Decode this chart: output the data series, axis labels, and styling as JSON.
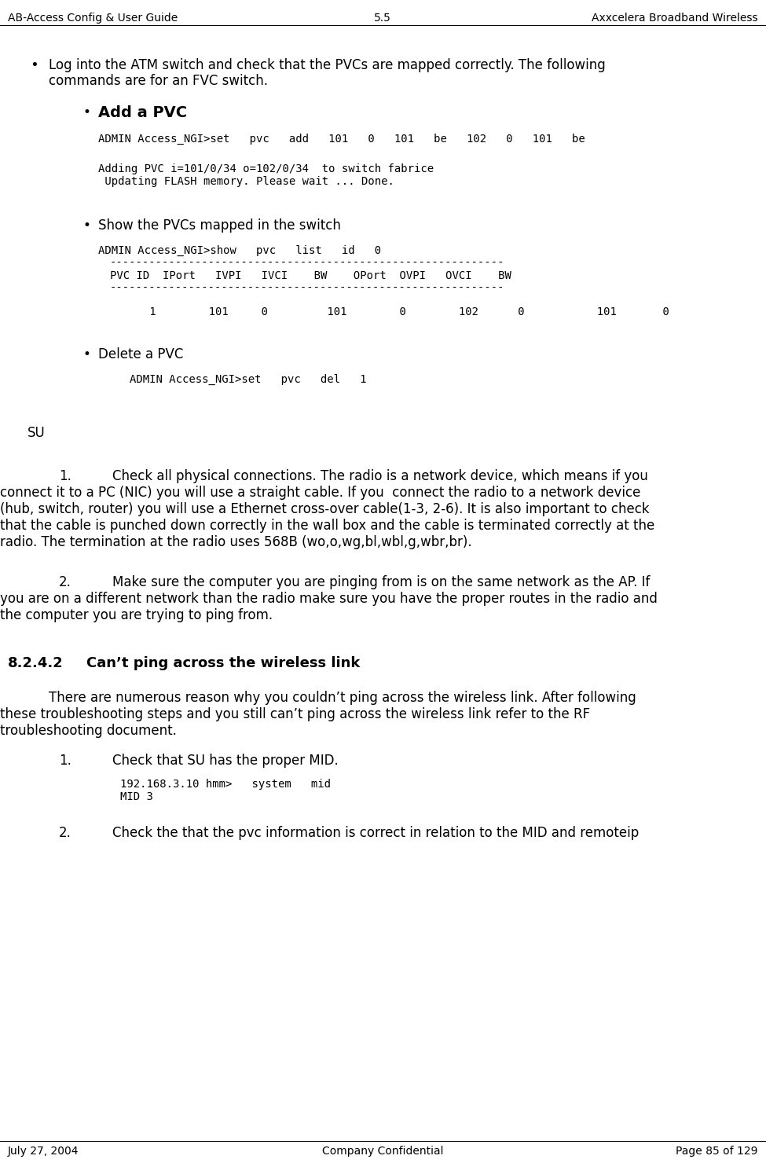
{
  "header_left": "AB-Access Config & User Guide",
  "header_center": "5.5",
  "header_right": "Axxcelera Broadband Wireless",
  "footer_left": "July 27, 2004",
  "footer_center": "Company Confidential",
  "footer_right": "Page 85 of 129",
  "bg_color": "#ffffff",
  "text_color": "#000000",
  "body_font_size": 12,
  "code_font_size": 10,
  "header_font_size": 10,
  "section_font_size": 13
}
